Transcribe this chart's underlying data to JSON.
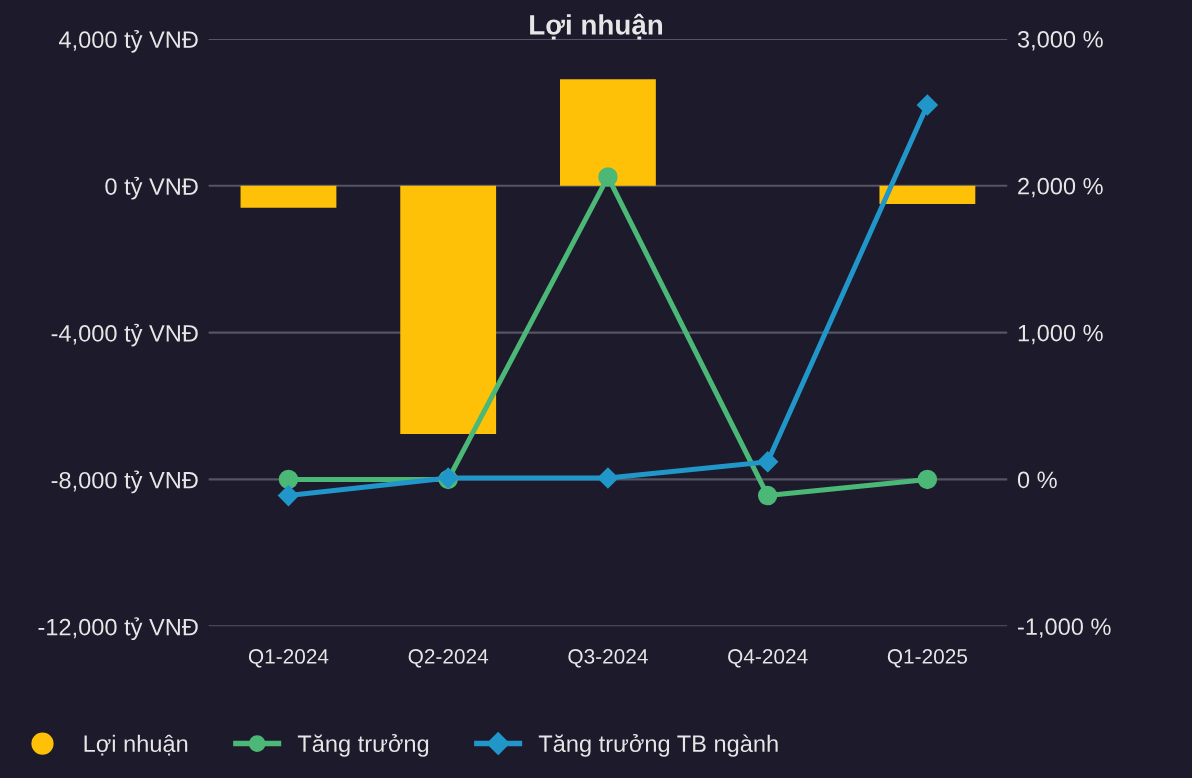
{
  "chart_data": {
    "type": "bar",
    "title": "Lợi nhuận",
    "categories": [
      "Q1-2024",
      "Q2-2024",
      "Q3-2024",
      "Q4-2024",
      "Q1-2025"
    ],
    "series": [
      {
        "name": "Lợi nhuận",
        "color": "#ffc107",
        "values": [
          -600,
          -6760,
          2900,
          null,
          -500
        ]
      },
      {
        "name": "Tăng trưởng",
        "type": "line",
        "axis": "y2",
        "color": "#4cb877",
        "marker": "circle",
        "values": [
          0,
          0,
          2060,
          -110,
          0
        ]
      },
      {
        "name": "Tăng trưởng TB ngành",
        "type": "line",
        "axis": "y2",
        "color": "#2196c9",
        "marker": "diamond",
        "values": [
          -110,
          10,
          10,
          120,
          2550
        ]
      }
    ],
    "ylim": [
      -12000,
      4000
    ],
    "yticks": [
      {
        "value": -12000,
        "label": "-12,000 tỷ VNĐ"
      },
      {
        "value": -8000,
        "label": "-8,000 tỷ VNĐ"
      },
      {
        "value": -4000,
        "label": "-4,000 tỷ VNĐ"
      },
      {
        "value": 0,
        "label": "0 tỷ VNĐ"
      },
      {
        "value": 4000,
        "label": "4,000 tỷ VNĐ"
      }
    ],
    "y2lim": [
      -1000,
      3000
    ],
    "y2ticks": [
      {
        "value": -1000,
        "label": "-1,000 %"
      },
      {
        "value": 0,
        "label": "0 %"
      },
      {
        "value": 1000,
        "label": "1,000 %"
      },
      {
        "value": 2000,
        "label": "2,000 %"
      },
      {
        "value": 3000,
        "label": "3,000 %"
      }
    ],
    "grid": "y",
    "legend": "bottom"
  }
}
